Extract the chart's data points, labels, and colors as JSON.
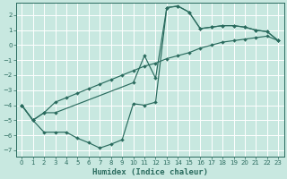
{
  "xlabel": "Humidex (Indice chaleur)",
  "bg_color": "#c8e8e0",
  "line_color": "#2a6b5e",
  "xlim": [
    -0.5,
    23.5
  ],
  "ylim": [
    -7.4,
    2.8
  ],
  "xticks": [
    0,
    1,
    2,
    3,
    4,
    5,
    6,
    7,
    8,
    9,
    10,
    11,
    12,
    13,
    14,
    15,
    16,
    17,
    18,
    19,
    20,
    21,
    22,
    23
  ],
  "yticks": [
    -7,
    -6,
    -5,
    -4,
    -3,
    -2,
    -1,
    0,
    1,
    2
  ],
  "curve_A_x": [
    0,
    1,
    2,
    3,
    4,
    5,
    6,
    7,
    8,
    9,
    10,
    11,
    12,
    13,
    14,
    15,
    16,
    17,
    18,
    19,
    20,
    21,
    22,
    23
  ],
  "curve_A_y": [
    -4.0,
    -5.0,
    -4.5,
    -3.8,
    -3.5,
    -3.2,
    -2.9,
    -2.6,
    -2.3,
    -2.0,
    -1.7,
    -1.4,
    -1.2,
    -0.9,
    -0.7,
    -0.5,
    -0.2,
    0.0,
    0.2,
    0.3,
    0.4,
    0.5,
    0.6,
    0.3
  ],
  "curve_B_x": [
    0,
    1,
    2,
    3,
    10,
    11,
    12,
    13,
    14,
    15,
    16,
    17,
    18,
    19,
    20,
    21,
    22,
    23
  ],
  "curve_B_y": [
    -4.0,
    -5.0,
    -4.5,
    -4.5,
    -2.5,
    -0.7,
    -2.2,
    2.5,
    2.6,
    2.2,
    1.1,
    1.2,
    1.3,
    1.3,
    1.2,
    1.0,
    0.9,
    0.3
  ],
  "curve_C_x": [
    0,
    1,
    2,
    3,
    4,
    5,
    6,
    7,
    8,
    9,
    10,
    11,
    12,
    13,
    14,
    15,
    16,
    17,
    18,
    19,
    20,
    21,
    22,
    23
  ],
  "curve_C_y": [
    -4.0,
    -5.0,
    -5.8,
    -5.8,
    -5.8,
    -6.2,
    -6.5,
    -6.85,
    -6.6,
    -6.3,
    -3.9,
    -4.0,
    -3.8,
    2.5,
    2.6,
    2.2,
    1.1,
    1.2,
    1.3,
    1.3,
    1.2,
    1.0,
    0.9,
    0.3
  ]
}
